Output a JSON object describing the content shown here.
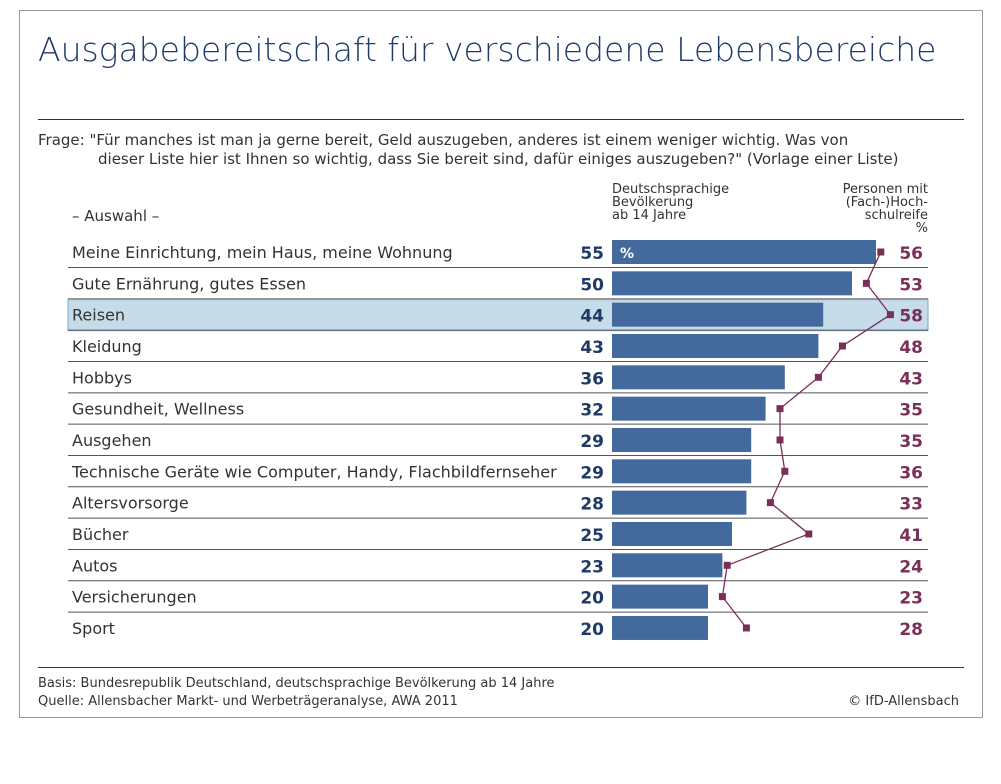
{
  "title": "Ausgabebereitschaft für verschiedene Lebensbereiche",
  "question_line1": "Frage: \"Für manches ist man ja gerne bereit, Geld auszugeben, anderes ist einem weniger wichtig. Was von",
  "question_line2": "dieser Liste hier ist Ihnen so wichtig, dass Sie bereit sind, dafür einiges auszugeben?\" (Vorlage einer Liste)",
  "footer_basis": "Basis: Bundesrepublik Deutschland, deutschsprachige Bevölkerung ab 14 Jahre",
  "footer_source": "Quelle: Allensbacher Markt- und Werbeträgeranalyse, AWA 2011",
  "copyright": "© IfD-Allensbach",
  "colors": {
    "bar": "#44699c",
    "line": "#7a2f58",
    "left_numbers": "#1f3a64",
    "right_numbers": "#7a2f58",
    "highlight": "#c6dce9"
  },
  "chart_data": {
    "type": "bar",
    "category_header": "– Auswahl –",
    "unit_label_bar": "%",
    "unit_label_line": "%",
    "highlighted_category": "Reisen",
    "categories": [
      "Meine Einrichtung, mein Haus, meine Wohnung",
      "Gute Ernährung, gutes Essen",
      "Reisen",
      "Kleidung",
      "Hobbys",
      "Gesundheit, Wellness",
      "Ausgehen",
      "Technische Geräte wie Computer, Handy, Flachbildfernseher",
      "Altersvorsorge",
      "Bücher",
      "Autos",
      "Versicherungen",
      "Sport"
    ],
    "series": [
      {
        "name": "Deutschsprachige Bevölkerung ab 14 Jahre",
        "type": "bar",
        "values": [
          55,
          50,
          44,
          43,
          36,
          32,
          29,
          29,
          28,
          25,
          23,
          20,
          20
        ]
      },
      {
        "name": "Personen mit (Fach-)Hochschulreife",
        "type": "line",
        "values": [
          56,
          53,
          58,
          48,
          43,
          35,
          35,
          36,
          33,
          41,
          24,
          23,
          28
        ]
      }
    ],
    "series_header_left": [
      "Deutschsprachige",
      "Bevölkerung",
      "ab 14 Jahre"
    ],
    "series_header_right": [
      "Personen mit",
      "(Fach-)Hoch-",
      "schulreife",
      "%"
    ],
    "xlim": [
      0,
      60
    ]
  }
}
